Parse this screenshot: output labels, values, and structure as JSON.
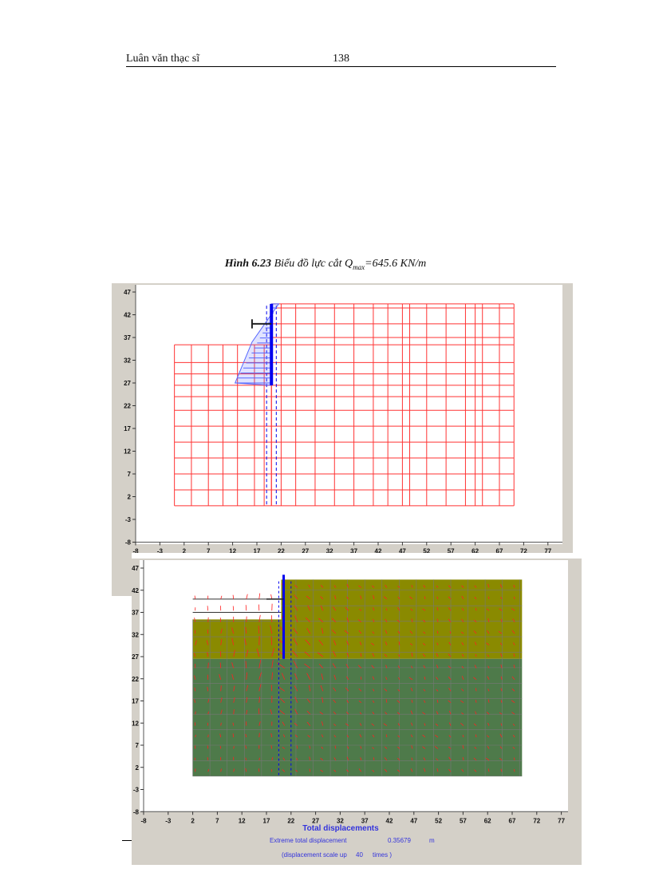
{
  "header": {
    "title": "Luân văn thạc sĩ",
    "page_number": "138"
  },
  "caption": {
    "label": "Hình 6.23",
    "text": "Biểu đồ lực cắt Q",
    "subscript": "max",
    "value": "=645.6 KN/m"
  },
  "figure_top": {
    "y_ticks": [
      "47",
      "42",
      "37",
      "32",
      "27",
      "22",
      "17",
      "12",
      "7",
      "2",
      "-3",
      "-8"
    ],
    "x_ticks": [
      "-8",
      "-3",
      "2",
      "7",
      "12",
      "17",
      "22",
      "27",
      "32",
      "37",
      "42",
      "47",
      "52",
      "57",
      "62",
      "67",
      "72",
      "77"
    ],
    "colors": {
      "mesh": "#ff3333",
      "wall": "#0000ee",
      "diagram": "#5566ff"
    }
  },
  "figure_bottom": {
    "y_ticks": [
      "47",
      "42",
      "37",
      "32",
      "27",
      "22",
      "17",
      "12",
      "7",
      "2",
      "-3",
      "-8"
    ],
    "x_ticks": [
      "-8",
      "-3",
      "2",
      "7",
      "12",
      "17",
      "22",
      "27",
      "32",
      "37",
      "42",
      "47",
      "52",
      "57",
      "62",
      "67",
      "72",
      "77"
    ],
    "title": "Total displacements",
    "extreme_label": "Extreme total displacement",
    "extreme_value": "0.35679",
    "extreme_unit": "m",
    "scale_prefix": "(displacement scale up",
    "scale_value": "40",
    "scale_suffix": "times )",
    "colors": {
      "upper_soil": "#8a8a00",
      "lower_soil": "#4e7a4a",
      "arrows": "#ff2020",
      "wall": "#0000ee"
    }
  }
}
